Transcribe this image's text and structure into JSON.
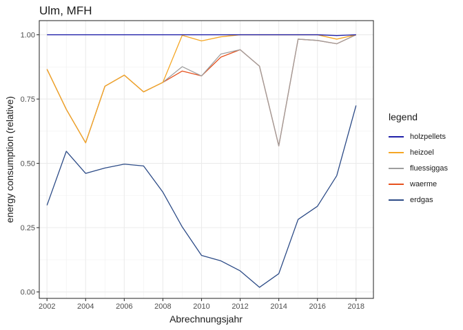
{
  "chart_data": {
    "type": "line",
    "title": "Ulm, MFH",
    "xlabel": "Abrechnungsjahr",
    "ylabel": "energy consumption (relative)",
    "xlim": [
      2001.6,
      2018.9
    ],
    "ylim": [
      -0.025,
      1.055
    ],
    "x_ticks": [
      2002,
      2004,
      2006,
      2008,
      2010,
      2012,
      2014,
      2016,
      2018
    ],
    "y_ticks": [
      0.0,
      0.25,
      0.5,
      0.75,
      1.0
    ],
    "y_tick_labels": [
      "0.00",
      "0.25",
      "0.50",
      "0.75",
      "1.00"
    ],
    "grid": true,
    "legend_title": "legend",
    "legend_position": "right",
    "x": [
      2002,
      2003,
      2004,
      2005,
      2006,
      2007,
      2008,
      2009,
      2010,
      2011,
      2012,
      2013,
      2014,
      2015,
      2016,
      2017,
      2018
    ],
    "series": [
      {
        "name": "holzpellets",
        "color": "#1e1ea8",
        "values": [
          1.0,
          1.0,
          1.0,
          1.0,
          1.0,
          1.0,
          1.0,
          1.0,
          1.0,
          1.0,
          1.0,
          1.0,
          1.0,
          1.0,
          1.0,
          0.997,
          1.0
        ]
      },
      {
        "name": "heizoel",
        "color": "#f5a623",
        "values": [
          0.866,
          0.71,
          0.58,
          0.8,
          0.843,
          0.778,
          0.815,
          0.998,
          0.976,
          0.992,
          1.0,
          1.0,
          1.0,
          1.0,
          1.0,
          0.983,
          1.0
        ]
      },
      {
        "name": "fluessiggas",
        "color": "#9e9e9e",
        "values": [
          0.866,
          0.71,
          0.58,
          0.8,
          0.843,
          0.778,
          0.815,
          0.876,
          0.84,
          0.925,
          0.942,
          0.878,
          0.568,
          0.983,
          0.978,
          0.965,
          1.0
        ]
      },
      {
        "name": "waerme",
        "color": "#e6501c",
        "values": [
          0.866,
          0.71,
          0.58,
          0.8,
          0.843,
          0.778,
          0.815,
          0.859,
          0.84,
          0.913,
          0.942,
          0.878,
          0.568,
          0.983,
          0.978,
          0.965,
          1.0
        ]
      },
      {
        "name": "erdgas",
        "color": "#2b4a86",
        "values": [
          0.337,
          0.547,
          0.461,
          0.482,
          0.497,
          0.49,
          0.388,
          0.253,
          0.142,
          0.121,
          0.082,
          0.018,
          0.071,
          0.282,
          0.333,
          0.452,
          0.725
        ]
      }
    ],
    "draw_order": [
      "erdgas",
      "waerme",
      "fluessiggas",
      "heizoel",
      "holzpellets"
    ]
  }
}
